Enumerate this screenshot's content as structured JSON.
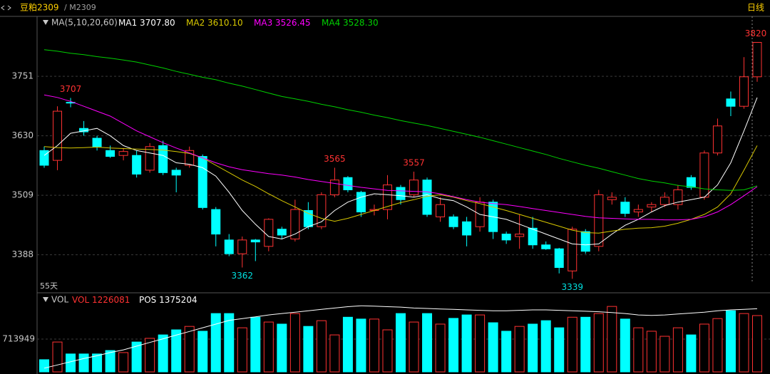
{
  "header": {
    "symbol": "豆粕2309",
    "contract": "/ M2309",
    "period": "日线"
  },
  "chart_data": {
    "type": "candlestick",
    "indicator_label": "MA(5,10,20,60)",
    "span_label": "55天",
    "up_color": "#ff3232",
    "down_color": "#00ffff",
    "ylim": [
      3312,
      3870
    ],
    "yticks": [
      3388,
      3509,
      3630,
      3751
    ],
    "grid": true,
    "open": [
      3600,
      3580,
      3698,
      3645,
      3625,
      3600,
      3590,
      3590,
      3560,
      3610,
      3560,
      3570,
      3588,
      3480,
      3418,
      3390,
      3418,
      3405,
      3440,
      3420,
      3478,
      3445,
      3510,
      3545,
      3515,
      3478,
      3480,
      3525,
      3510,
      3540,
      3465,
      3465,
      3455,
      3445,
      3495,
      3430,
      3425,
      3442,
      3408,
      3400,
      3355,
      3435,
      3405,
      3500,
      3495,
      3475,
      3485,
      3490,
      3490,
      3545,
      3505,
      3595,
      3705,
      3690,
      3750
    ],
    "high": [
      3608,
      3690,
      3707,
      3660,
      3630,
      3610,
      3605,
      3600,
      3615,
      3620,
      3565,
      3608,
      3592,
      3485,
      3430,
      3425,
      3420,
      3462,
      3445,
      3500,
      3495,
      3515,
      3565,
      3548,
      3518,
      3490,
      3550,
      3530,
      3557,
      3545,
      3505,
      3470,
      3465,
      3505,
      3500,
      3435,
      3470,
      3465,
      3415,
      3402,
      3445,
      3440,
      3520,
      3515,
      3505,
      3490,
      3495,
      3515,
      3530,
      3550,
      3600,
      3665,
      3720,
      3790,
      3820
    ],
    "low": [
      3565,
      3560,
      3688,
      3630,
      3600,
      3585,
      3580,
      3545,
      3555,
      3550,
      3515,
      3565,
      3480,
      3405,
      3385,
      3362,
      3375,
      3395,
      3420,
      3415,
      3440,
      3440,
      3505,
      3515,
      3465,
      3468,
      3460,
      3490,
      3505,
      3465,
      3455,
      3440,
      3405,
      3435,
      3420,
      3410,
      3400,
      3400,
      3398,
      3350,
      3339,
      3390,
      3395,
      3490,
      3465,
      3465,
      3475,
      3485,
      3480,
      3520,
      3500,
      3590,
      3670,
      3685,
      3740
    ],
    "close": [
      3570,
      3680,
      3697,
      3638,
      3608,
      3588,
      3598,
      3552,
      3608,
      3555,
      3550,
      3600,
      3484,
      3430,
      3390,
      3418,
      3414,
      3460,
      3428,
      3480,
      3445,
      3510,
      3540,
      3520,
      3475,
      3480,
      3530,
      3500,
      3540,
      3470,
      3490,
      3445,
      3428,
      3495,
      3435,
      3418,
      3430,
      3408,
      3400,
      3362,
      3440,
      3395,
      3510,
      3505,
      3472,
      3480,
      3490,
      3505,
      3520,
      3525,
      3595,
      3650,
      3690,
      3750,
      3820
    ],
    "series": [
      {
        "name": "MA1",
        "color": "#ffffff",
        "last_label": "3707.80",
        "values": [
          3590,
          3610,
          3635,
          3640,
          3645,
          3630,
          3610,
          3600,
          3595,
          3590,
          3575,
          3572,
          3565,
          3548,
          3515,
          3478,
          3450,
          3425,
          3420,
          3430,
          3445,
          3455,
          3478,
          3495,
          3505,
          3512,
          3510,
          3508,
          3505,
          3510,
          3502,
          3498,
          3485,
          3470,
          3465,
          3460,
          3450,
          3440,
          3430,
          3420,
          3410,
          3408,
          3410,
          3430,
          3448,
          3460,
          3475,
          3488,
          3495,
          3500,
          3505,
          3530,
          3575,
          3640,
          3707.8
        ]
      },
      {
        "name": "MA2",
        "color": "#d8c800",
        "last_label": "3610.10",
        "values": [
          3608,
          3606,
          3605,
          3606,
          3607,
          3605,
          3604,
          3603,
          3602,
          3601,
          3598,
          3594,
          3585,
          3570,
          3555,
          3540,
          3527,
          3512,
          3498,
          3485,
          3472,
          3462,
          3456,
          3462,
          3470,
          3478,
          3486,
          3494,
          3500,
          3507,
          3510,
          3505,
          3498,
          3492,
          3485,
          3478,
          3470,
          3462,
          3454,
          3446,
          3438,
          3433,
          3432,
          3436,
          3440,
          3442,
          3443,
          3446,
          3452,
          3460,
          3470,
          3485,
          3512,
          3560,
          3610.1
        ]
      },
      {
        "name": "MA3",
        "color": "#ff00ff",
        "last_label": "3526.45",
        "values": [
          3713,
          3708,
          3700,
          3690,
          3680,
          3670,
          3655,
          3640,
          3628,
          3616,
          3605,
          3595,
          3585,
          3575,
          3567,
          3561,
          3557,
          3553,
          3550,
          3546,
          3541,
          3537,
          3533,
          3529,
          3525,
          3522,
          3519,
          3518,
          3517,
          3516,
          3512,
          3506,
          3500,
          3495,
          3492,
          3490,
          3486,
          3482,
          3478,
          3474,
          3470,
          3466,
          3463,
          3462,
          3461,
          3460,
          3460,
          3459,
          3459,
          3460,
          3465,
          3475,
          3490,
          3508,
          3526.45
        ]
      },
      {
        "name": "MA4",
        "color": "#00d000",
        "last_label": "3528.30",
        "values": [
          3805,
          3802,
          3798,
          3795,
          3791,
          3788,
          3784,
          3780,
          3774,
          3768,
          3761,
          3755,
          3749,
          3744,
          3737,
          3731,
          3724,
          3717,
          3710,
          3705,
          3700,
          3694,
          3689,
          3683,
          3678,
          3672,
          3667,
          3661,
          3656,
          3651,
          3645,
          3639,
          3633,
          3627,
          3620,
          3613,
          3606,
          3599,
          3592,
          3584,
          3577,
          3570,
          3564,
          3557,
          3550,
          3543,
          3538,
          3534,
          3529,
          3526,
          3522,
          3520,
          3519,
          3520,
          3528.3
        ]
      }
    ],
    "volume_label": "VOL",
    "volume": {
      "name": "VOL",
      "ylim": [
        0,
        1660000
      ],
      "yticks": [
        713949
      ],
      "values": [
        265000,
        650000,
        390000,
        390000,
        390000,
        465000,
        420000,
        650000,
        730000,
        805000,
        915000,
        990000,
        885000,
        1270000,
        1270000,
        960000,
        1190000,
        1085000,
        1040000,
        1270000,
        990000,
        1115000,
        805000,
        1190000,
        1150000,
        1150000,
        915000,
        1270000,
        1085000,
        1270000,
        1040000,
        1165000,
        1240000,
        1240000,
        1070000,
        885000,
        990000,
        1040000,
        1115000,
        960000,
        1190000,
        1190000,
        1270000,
        1425000,
        1150000,
        960000,
        885000,
        775000,
        960000,
        805000,
        1040000,
        1160000,
        1330000,
        1270000,
        1226081
      ]
    },
    "pos": {
      "name": "POS",
      "color": "#ffffff",
      "values": [
        80000,
        150000,
        220000,
        290000,
        350000,
        420000,
        480000,
        560000,
        640000,
        720000,
        800000,
        880000,
        960000,
        1040000,
        1120000,
        1160000,
        1200000,
        1240000,
        1270000,
        1300000,
        1330000,
        1360000,
        1390000,
        1420000,
        1440000,
        1430000,
        1420000,
        1410000,
        1390000,
        1380000,
        1370000,
        1360000,
        1350000,
        1340000,
        1330000,
        1330000,
        1340000,
        1350000,
        1350000,
        1340000,
        1330000,
        1320000,
        1310000,
        1290000,
        1270000,
        1240000,
        1230000,
        1240000,
        1260000,
        1280000,
        1300000,
        1330000,
        1350000,
        1360000,
        1375204
      ]
    }
  }
}
